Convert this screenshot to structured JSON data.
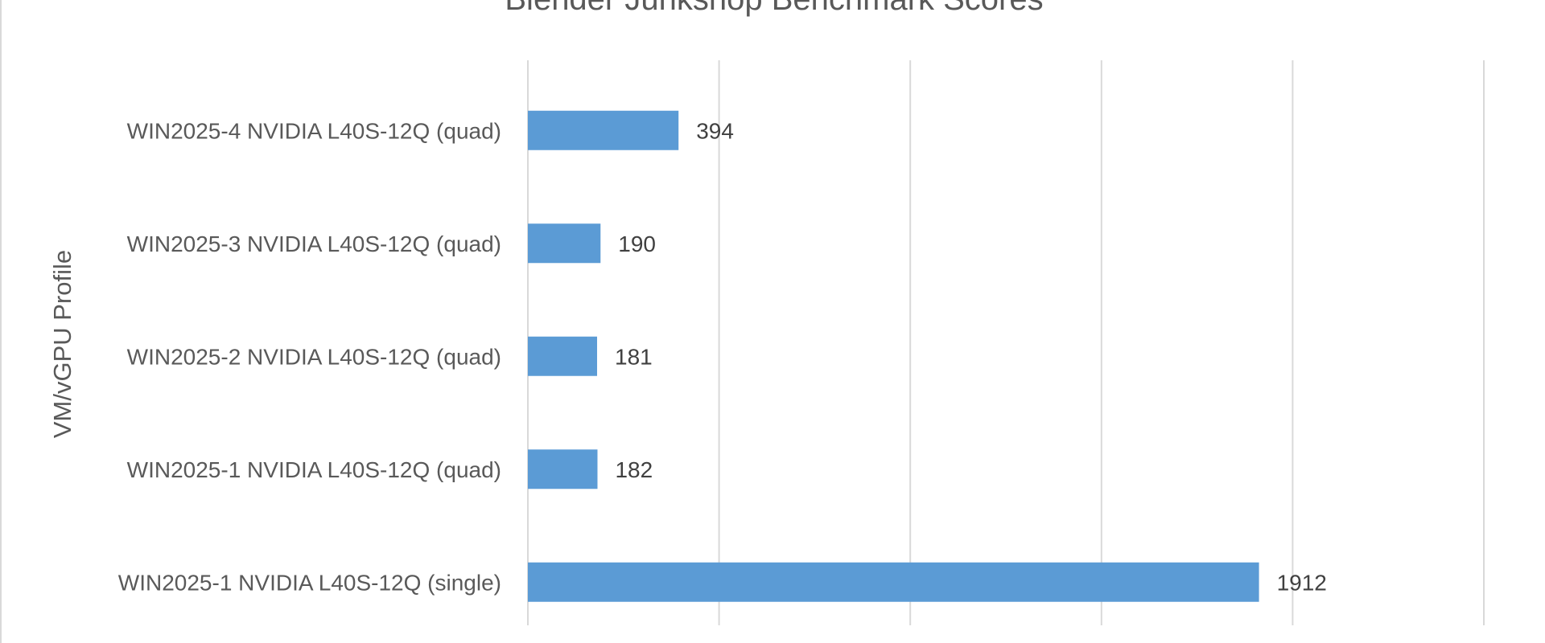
{
  "chart_data": {
    "type": "bar",
    "orientation": "horizontal",
    "title": "Blender Junkshop Benchmark Scores",
    "ylabel": "VM/vGPU Profile",
    "xlabel": "",
    "categories": [
      "WIN2025-4 NVIDIA L40S-12Q (quad)",
      "WIN2025-3 NVIDIA L40S-12Q (quad)",
      "WIN2025-2 NVIDIA L40S-12Q (quad)",
      "WIN2025-1 NVIDIA L40S-12Q (quad)",
      "WIN2025-1 NVIDIA L40S-12Q (single)"
    ],
    "values": [
      394,
      190,
      181,
      182,
      1912
    ],
    "xlim": [
      0,
      2500
    ],
    "gridlines": "vertical",
    "bar_color": "#5B9BD5",
    "data_labels": true
  }
}
